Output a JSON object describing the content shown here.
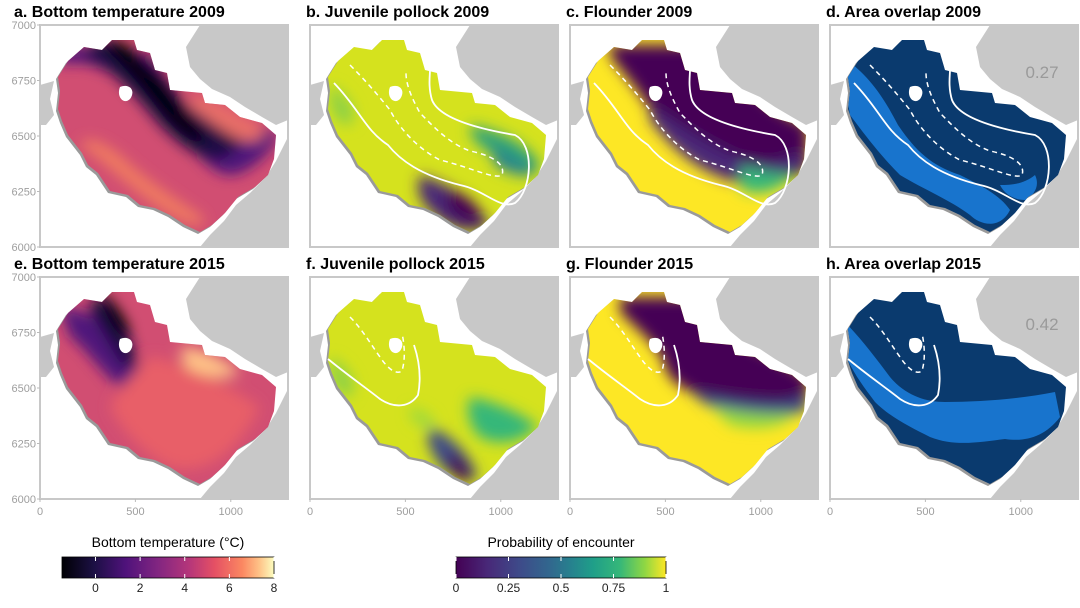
{
  "figure": {
    "axes": {
      "y_ticks": [
        "7000",
        "6750",
        "6500",
        "6250",
        "6000"
      ],
      "x_ticks": [
        "0",
        "500",
        "1000"
      ]
    },
    "panels": [
      {
        "label": "a. Bottom temperature 2009",
        "kind": "temperature",
        "year": 2009
      },
      {
        "label": "b. Juvenile pollock 2009",
        "kind": "pollock",
        "year": 2009
      },
      {
        "label": "c. Flounder 2009",
        "kind": "flounder",
        "year": 2009
      },
      {
        "label": "d. Area overlap 2009",
        "kind": "overlap",
        "year": 2009,
        "overlap_value": "0.27"
      },
      {
        "label": "e. Bottom temperature 2015",
        "kind": "temperature",
        "year": 2015
      },
      {
        "label": "f. Juvenile pollock 2015",
        "kind": "pollock",
        "year": 2015
      },
      {
        "label": "g. Flounder 2015",
        "kind": "flounder",
        "year": 2015
      },
      {
        "label": "h. Area overlap 2015",
        "kind": "overlap",
        "year": 2015,
        "overlap_value": "0.42"
      }
    ],
    "legends": {
      "temperature": {
        "title": "Bottom temperature (°C)",
        "tick_labels": [
          "0",
          "2",
          "4",
          "6",
          "8"
        ],
        "tick_values": [
          0,
          2,
          4,
          6,
          8
        ],
        "range": [
          -1.5,
          8
        ]
      },
      "probability": {
        "title": "Probability of encounter",
        "tick_labels": [
          "0",
          "0.25",
          "0.5",
          "0.75",
          "1"
        ],
        "tick_values": [
          0,
          0.25,
          0.5,
          0.75,
          1
        ],
        "range": [
          0,
          1
        ]
      }
    },
    "colors": {
      "land": "#c8c8c8",
      "frame": "#c8c8c8",
      "overlap_dark": "#0a3a6e",
      "overlap_light": "#1874cd",
      "contour": "#ffffff"
    }
  },
  "chart_data": {
    "type": "heatmap",
    "x_range": [
      0,
      1300
    ],
    "y_range": [
      6000,
      7000
    ],
    "x_ticks": [
      0,
      500,
      1000
    ],
    "y_ticks": [
      6000,
      6250,
      6500,
      6750,
      7000
    ],
    "panels": [
      {
        "title": "a. Bottom temperature 2009",
        "variable": "bottom temperature (°C)",
        "range": [
          -1.5,
          8
        ],
        "note": "cold pool (<0 °C) along the middle shelf, warmer (5–7 °C) inner shelf"
      },
      {
        "title": "b. Juvenile pollock 2009",
        "variable": "probability of encounter",
        "range": [
          0,
          1
        ],
        "note": "high over middle/outer shelf, low (<0.25) in south-east inner shelf"
      },
      {
        "title": "c. Flounder 2009",
        "variable": "probability of encounter",
        "range": [
          0,
          1
        ],
        "note": "high (~1) on inner/southern shelf, near 0 on middle/northern shelf"
      },
      {
        "title": "d. Area overlap 2009",
        "variable": "area overlap",
        "overlap": 0.27
      },
      {
        "title": "e. Bottom temperature 2015",
        "variable": "bottom temperature (°C)",
        "range": [
          -1.5,
          8
        ],
        "note": "cold pool restricted to north-west, warmer shelf overall"
      },
      {
        "title": "f. Juvenile pollock 2015",
        "variable": "probability of encounter",
        "range": [
          0,
          1
        ],
        "note": "high over most of the shelf"
      },
      {
        "title": "g. Flounder 2015",
        "variable": "probability of encounter",
        "range": [
          0,
          1
        ],
        "note": "high over southern shelf, low in north-west"
      },
      {
        "title": "h. Area overlap 2015",
        "variable": "area overlap",
        "overlap": 0.42
      }
    ]
  }
}
